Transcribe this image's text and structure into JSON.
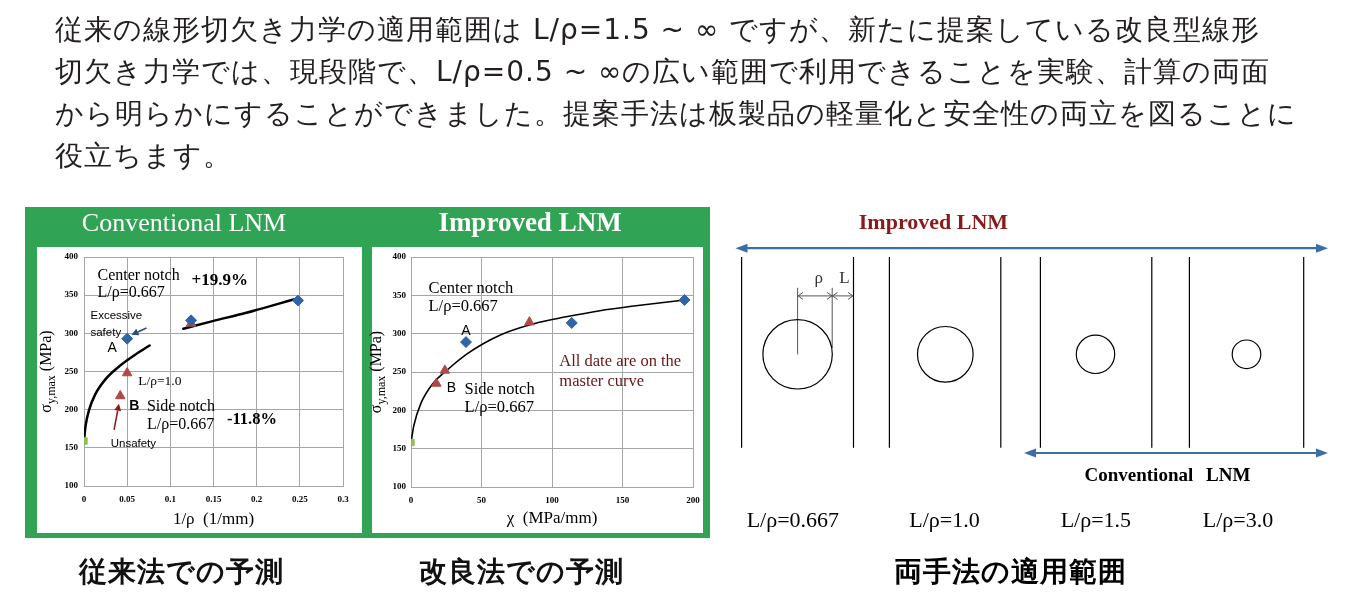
{
  "chart_data": [
    {
      "type": "other",
      "annotations": [
        "従来の線形切欠き力学の適用範囲は L/ρ=1.5 ~ ∞ ですが、新たに提案している改良型線形",
        "切欠き力学では、現段階で、L/ρ=0.5 ~ ∞の広い範囲で利用できることを実験、計算の両面",
        "から明らかにすることができました。提案手法は板製品の軽量化と安全性の両立を図ることに",
        "役立ちます。"
      ]
    },
    {
      "type": "scatter",
      "title": "Conventional LNM",
      "xlabel": "1/ρ  (1/mm)",
      "ylabel": "σ$_{y,max}$ (MPa)",
      "xlim": [
        0,
        0.3
      ],
      "xticks": [
        0,
        0.05,
        0.1,
        0.15,
        0.2,
        0.25,
        0.3
      ],
      "ylim": [
        100,
        400
      ],
      "yticks": [
        100,
        150,
        200,
        250,
        300,
        350,
        400
      ],
      "grid": true,
      "series": [
        {
          "color": "#2f65a7",
          "marker": "diamond",
          "x": [
            0.05,
            0.124,
            0.248
          ],
          "values": [
            293,
            317,
            343
          ]
        },
        {
          "color": "#b04a4a",
          "marker": "triangle",
          "x": [
            0.042,
            0.05,
            0.124
          ],
          "values": [
            218,
            248,
            313
          ]
        },
        {
          "color": "#8cc152",
          "marker": "square",
          "x": [
            0
          ],
          "values": [
            159
          ]
        },
        {
          "type": "line",
          "color": "#000000",
          "marker": "none",
          "x": [
            0,
            0.002,
            0.006,
            0.013,
            0.025,
            0.04,
            0.058,
            0.076,
            0.095,
            0.115,
            0.149,
            0.188,
            0.248
          ],
          "values": [
            160,
            180,
            200,
            220,
            240,
            256,
            271,
            284,
            null,
            306,
            316,
            327,
            346
          ]
        }
      ],
      "annotations": [
        "Center notch\nL/ρ=0.667",
        "+19.9%",
        "Excessive\nsafety",
        {
          "text": "A",
          "x": 0.05,
          "y": 293
        },
        {
          "text": "L/ρ=1.0",
          "x": 0.05,
          "y": 248
        },
        {
          "text": "B",
          "x": 0.042,
          "y": 218
        },
        "Side notch\nL/ρ=0.667",
        "-11.8%",
        "Unsafety",
        "従来法での予測"
      ]
    },
    {
      "type": "scatter",
      "title": "Improved LNM",
      "xlabel": "χ  (MPa/mm)",
      "ylabel": "σ$_{y,max}$ (MPa)",
      "xlim": [
        0,
        200
      ],
      "xticks": [
        0,
        50,
        100,
        150,
        200
      ],
      "ylim": [
        100,
        400
      ],
      "yticks": [
        100,
        150,
        200,
        250,
        300,
        350,
        400
      ],
      "grid": true,
      "series": [
        {
          "color": "#2f65a7",
          "marker": "diamond",
          "x": [
            39,
            114,
            194
          ],
          "values": [
            289,
            314,
            344
          ]
        },
        {
          "color": "#b04a4a",
          "marker": "triangle",
          "x": [
            18,
            24,
            84
          ],
          "values": [
            235,
            252,
            315
          ]
        },
        {
          "color": "#8cc152",
          "marker": "square",
          "x": [
            0
          ],
          "values": [
            158
          ]
        },
        {
          "type": "line",
          "color": "#000000",
          "marker": "none",
          "x": [
            0,
            2,
            7,
            16,
            24,
            40,
            63,
            87,
            110,
            134,
            158,
            194
          ],
          "values": [
            158,
            180,
            209,
            236,
            250,
            274,
            298,
            313,
            322,
            330,
            336,
            344
          ]
        }
      ],
      "annotations": [
        "Center notch\nL/ρ=0.667",
        {
          "text": "A",
          "x": 39,
          "y": 289
        },
        {
          "text": "B",
          "x": 18,
          "y": 235
        },
        "Side notch\nL/ρ=0.667",
        "All date are on the\nmaster curve",
        "改良法での予測"
      ]
    },
    {
      "type": "other",
      "annotations": [
        "Improved LNM",
        "ρ",
        "L",
        "Conventional LNM",
        "L/ρ=0.667",
        "L/ρ=1.0",
        "L/ρ=1.5",
        "L/ρ=3.0",
        "両手法の適用範囲"
      ]
    }
  ]
}
